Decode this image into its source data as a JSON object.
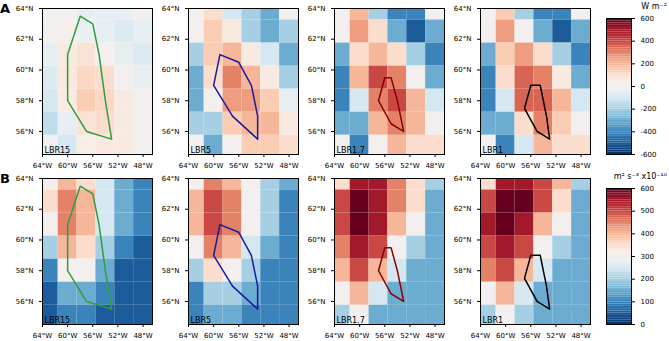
{
  "chart_data": {
    "type": "heatmap",
    "x": [
      -63,
      -60,
      -57,
      -54,
      -51,
      -48
    ],
    "y": [
      64,
      62.5,
      61,
      59.5,
      58,
      56.5,
      55
    ],
    "xlim": [
      -64,
      -46.5
    ],
    "ylim": [
      54.5,
      64
    ],
    "xticks": [
      {
        "value": -64,
        "label": "64°W"
      },
      {
        "value": -60,
        "label": "60°W"
      },
      {
        "value": -56,
        "label": "56°W"
      },
      {
        "value": -52,
        "label": "52°W"
      },
      {
        "value": -48,
        "label": "48°W"
      }
    ],
    "yticks": [
      {
        "value": 56,
        "label": "56°N"
      },
      {
        "value": 58,
        "label": "58°N"
      },
      {
        "value": 60,
        "label": "60°N"
      },
      {
        "value": 62,
        "label": "62°N"
      },
      {
        "value": 64,
        "label": "64°N"
      }
    ],
    "color": "RdBu",
    "rows": [
      {
        "row_label": "A",
        "colorbar": {
          "range": [
            -600,
            600
          ],
          "ticks": [
            -600,
            -400,
            -200,
            0,
            200,
            400,
            600
          ],
          "label": "W m⁻²"
        },
        "panels": [
          {
            "label": "LBR15",
            "outline": {
              "color": "#2e9e3e",
              "lon": [
                -58,
                -60,
                -60,
                -57,
                -53,
                -54,
                -55,
                -56
              ],
              "lat": [
                63.5,
                61,
                58,
                56,
                55.5,
                58,
                61,
                63
              ]
            },
            "values": [
              [
                0,
                0,
                -50,
                -50,
                -50,
                0
              ],
              [
                0,
                20,
                -30,
                -50,
                -80,
                -50
              ],
              [
                -50,
                50,
                80,
                0,
                -50,
                -80
              ],
              [
                -80,
                60,
                120,
                100,
                0,
                -50
              ],
              [
                -100,
                40,
                150,
                120,
                50,
                0
              ],
              [
                -150,
                -50,
                80,
                100,
                50,
                0
              ],
              [
                0,
                -100,
                30,
                50,
                50,
                0
              ]
            ]
          },
          {
            "label": "LBR5",
            "outline": {
              "color": "#1a1aa0",
              "lon": [
                -59,
                -60,
                -57,
                -53,
                -53,
                -54,
                -56
              ],
              "lat": [
                61,
                59,
                57,
                55.5,
                57,
                59,
                60.5
              ]
            },
            "values": [
              [
                0,
                100,
                -100,
                -200,
                -300,
                0
              ],
              [
                0,
                150,
                50,
                -200,
                -300,
                -200
              ],
              [
                -200,
                150,
                200,
                50,
                -100,
                -300
              ],
              [
                -300,
                100,
                300,
                200,
                50,
                -200
              ],
              [
                -300,
                0,
                250,
                250,
                150,
                -50
              ],
              [
                -200,
                -200,
                150,
                200,
                200,
                50
              ],
              [
                0,
                -300,
                0,
                150,
                150,
                100
              ]
            ]
          },
          {
            "label": "LBR1.7",
            "outline": {
              "color": "#8b0000",
              "lon": [
                -56,
                -57,
                -55,
                -53,
                -54,
                -55
              ],
              "lat": [
                59.5,
                58,
                56.5,
                56,
                58,
                59.5
              ]
            },
            "values": [
              [
                0,
                200,
                -200,
                -400,
                -400,
                0
              ],
              [
                0,
                250,
                100,
                -300,
                -500,
                -300
              ],
              [
                -300,
                100,
                200,
                100,
                -200,
                -400
              ],
              [
                -400,
                200,
                400,
                300,
                0,
                -300
              ],
              [
                -400,
                -100,
                300,
                400,
                200,
                -100
              ],
              [
                -300,
                -300,
                200,
                300,
                200,
                0
              ],
              [
                0,
                -400,
                0,
                200,
                100,
                100
              ]
            ]
          },
          {
            "label": "LBR1",
            "outline": {
              "color": "#000000",
              "lon": [
                -56,
                -57,
                -55,
                -53,
                -53.5,
                -54.5
              ],
              "lat": [
                59,
                57.5,
                56,
                55.5,
                57,
                59
              ]
            },
            "values": [
              [
                0,
                150,
                -200,
                -400,
                -400,
                0
              ],
              [
                0,
                250,
                0,
                -300,
                -500,
                -300
              ],
              [
                -300,
                150,
                250,
                100,
                -200,
                -400
              ],
              [
                -400,
                100,
                350,
                300,
                50,
                -300
              ],
              [
                -400,
                -100,
                350,
                350,
                200,
                -100
              ],
              [
                -300,
                -300,
                100,
                300,
                150,
                0
              ],
              [
                0,
                -400,
                -100,
                200,
                100,
                100
              ]
            ]
          }
        ]
      },
      {
        "row_label": "B",
        "colorbar": {
          "range": [
            0,
            600
          ],
          "ticks": [
            0,
            100,
            200,
            300,
            400,
            500,
            600
          ],
          "label": "m² s⁻³ x10⁻¹⁰"
        },
        "panels": [
          {
            "label": "LBR15",
            "outline": {
              "color": "#2e9e3e",
              "lon": [
                -58,
                -60,
                -60,
                -57,
                -53,
                -54,
                -55,
                -56
              ],
              "lat": [
                63.5,
                61,
                58,
                56,
                55.5,
                58,
                61,
                63
              ]
            },
            "values": [
              [
                300,
                400,
                350,
                250,
                150,
                100
              ],
              [
                350,
                450,
                400,
                250,
                150,
                100
              ],
              [
                300,
                450,
                400,
                250,
                150,
                100
              ],
              [
                200,
                400,
                350,
                200,
                100,
                50
              ],
              [
                100,
                300,
                300,
                150,
                50,
                50
              ],
              [
                50,
                150,
                150,
                100,
                50,
                50
              ],
              [
                50,
                100,
                100,
                50,
                50,
                50
              ]
            ]
          },
          {
            "label": "LBR5",
            "outline": {
              "color": "#1a1aa0",
              "lon": [
                -59,
                -60,
                -57,
                -53,
                -53,
                -54,
                -56
              ],
              "lat": [
                61,
                59,
                57,
                55.5,
                57,
                59,
                60.5
              ]
            },
            "values": [
              [
                300,
                450,
                400,
                300,
                200,
                150
              ],
              [
                400,
                500,
                450,
                300,
                200,
                100
              ],
              [
                400,
                500,
                450,
                300,
                200,
                100
              ],
              [
                300,
                450,
                400,
                250,
                150,
                100
              ],
              [
                200,
                350,
                300,
                200,
                100,
                100
              ],
              [
                100,
                200,
                200,
                150,
                100,
                100
              ],
              [
                100,
                150,
                150,
                100,
                100,
                100
              ]
            ]
          },
          {
            "label": "LBR1.7",
            "outline": {
              "color": "#8b0000",
              "lon": [
                -56,
                -57,
                -55,
                -53,
                -54,
                -55
              ],
              "lat": [
                59.5,
                58,
                56.5,
                56,
                58,
                59.5
              ]
            },
            "values": [
              [
                350,
                550,
                550,
                450,
                350,
                200
              ],
              [
                500,
                600,
                550,
                450,
                350,
                150
              ],
              [
                500,
                600,
                550,
                400,
                300,
                150
              ],
              [
                450,
                550,
                500,
                300,
                200,
                150
              ],
              [
                400,
                500,
                400,
                250,
                150,
                150
              ],
              [
                300,
                400,
                250,
                150,
                150,
                150
              ],
              [
                200,
                300,
                150,
                150,
                150,
                150
              ]
            ]
          },
          {
            "label": "LBR1",
            "outline": {
              "color": "#000000",
              "lon": [
                -56,
                -57,
                -55,
                -53,
                -53.5,
                -54.5
              ],
              "lat": [
                59,
                57.5,
                56,
                55.5,
                57,
                59
              ]
            },
            "values": [
              [
                350,
                550,
                550,
                500,
                400,
                200
              ],
              [
                500,
                600,
                600,
                500,
                350,
                150
              ],
              [
                550,
                600,
                550,
                400,
                300,
                150
              ],
              [
                500,
                550,
                500,
                300,
                200,
                150
              ],
              [
                450,
                500,
                400,
                250,
                150,
                150
              ],
              [
                300,
                400,
                250,
                150,
                150,
                150
              ],
              [
                200,
                300,
                200,
                150,
                150,
                150
              ]
            ]
          }
        ]
      }
    ]
  }
}
